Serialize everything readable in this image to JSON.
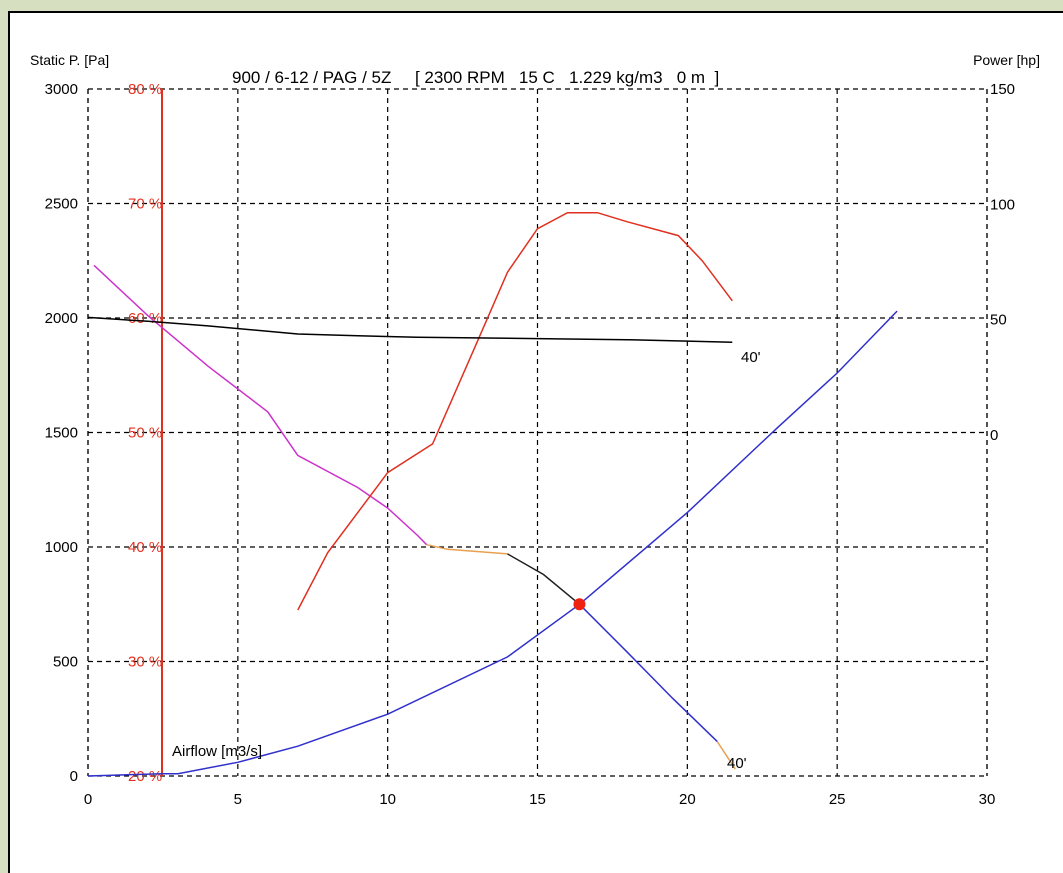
{
  "chart_data": {
    "type": "line",
    "title": "900 / 6-12 / PAG / 5Z     [ 2300 RPM   15 C   1.229 kg/m3   0 m  ]",
    "ylabel_left": "Static P. [Pa]",
    "ylabel_right": "Power [hp]",
    "xlabel": "Airflow [m3/s]",
    "xlim": [
      0,
      30
    ],
    "ylim": [
      0,
      3000
    ],
    "efficiency_range_pct": [
      20,
      80
    ],
    "power_range_hp": [
      0,
      150
    ],
    "grid": true,
    "x_ticks": [
      "0",
      "5",
      "10",
      "15",
      "20",
      "25",
      "30"
    ],
    "y_ticks_left": [
      "0",
      "500",
      "1000",
      "1500",
      "2000",
      "2500",
      "3000"
    ],
    "y_ticks_efficiency": [
      "20 %",
      "30 %",
      "40 %",
      "50 %",
      "60 %",
      "70 %",
      "80 %"
    ],
    "y_ticks_right": [
      "0",
      "50",
      "100",
      "150"
    ],
    "curve_labels": {
      "power": "40'",
      "pressure": "40'"
    },
    "operating_point": {
      "x": 16.4,
      "pressure_pa": 750
    },
    "series": [
      {
        "role": "pressure_stall_region",
        "color": "#cc33cc",
        "points": [
          [
            0.2,
            2230
          ],
          [
            2,
            2010
          ],
          [
            4,
            1790
          ],
          [
            6,
            1590
          ],
          [
            7,
            1400
          ],
          [
            9,
            1260
          ],
          [
            10,
            1170
          ],
          [
            11,
            1050
          ],
          [
            11.3,
            1010
          ]
        ]
      },
      {
        "role": "pressure_transition",
        "color": "#e8a050",
        "points": [
          [
            11.3,
            1010
          ],
          [
            12,
            990
          ],
          [
            14,
            970
          ]
        ]
      },
      {
        "role": "pressure_transition_dark",
        "color": "#202020",
        "points": [
          [
            14,
            970
          ],
          [
            15.2,
            880
          ],
          [
            16.4,
            750
          ]
        ]
      },
      {
        "role": "pressure_curve",
        "color": "#3030cc",
        "points": [
          [
            16.4,
            750
          ],
          [
            18,
            540
          ],
          [
            19.5,
            340
          ],
          [
            21,
            150
          ]
        ]
      },
      {
        "role": "pressure_curve_tail",
        "color": "#e8a050",
        "points": [
          [
            21,
            150
          ],
          [
            21.6,
            30
          ]
        ]
      },
      {
        "role": "system_curve",
        "color": "#3030cc",
        "points": [
          [
            0,
            0
          ],
          [
            2.5,
            10
          ],
          [
            3,
            10
          ],
          [
            5,
            60
          ],
          [
            7,
            130
          ],
          [
            10,
            270
          ],
          [
            14,
            520
          ],
          [
            16.4,
            750
          ],
          [
            20,
            1150
          ],
          [
            23,
            1520
          ],
          [
            25,
            1760
          ],
          [
            27,
            2030
          ]
        ]
      },
      {
        "role": "efficiency",
        "color": "#e03020",
        "points": [
          [
            7,
            34.5
          ],
          [
            8,
            39.5
          ],
          [
            10,
            46.5
          ],
          [
            11.5,
            49
          ],
          [
            13,
            58
          ],
          [
            14,
            64
          ],
          [
            15,
            67.8
          ],
          [
            16,
            69.2
          ],
          [
            17,
            69.2
          ],
          [
            18,
            68.4
          ],
          [
            19.7,
            67.2
          ],
          [
            20.5,
            65
          ],
          [
            21.5,
            61.5
          ]
        ]
      },
      {
        "role": "power",
        "color": "#000000",
        "points": [
          [
            0,
            51
          ],
          [
            2,
            49.3
          ],
          [
            4,
            47.3
          ],
          [
            7,
            43.8
          ],
          [
            9,
            43.0
          ],
          [
            11,
            42.4
          ],
          [
            15,
            41.8
          ],
          [
            18,
            41.3
          ],
          [
            20,
            40.7
          ],
          [
            21.5,
            40.2
          ]
        ]
      }
    ]
  }
}
